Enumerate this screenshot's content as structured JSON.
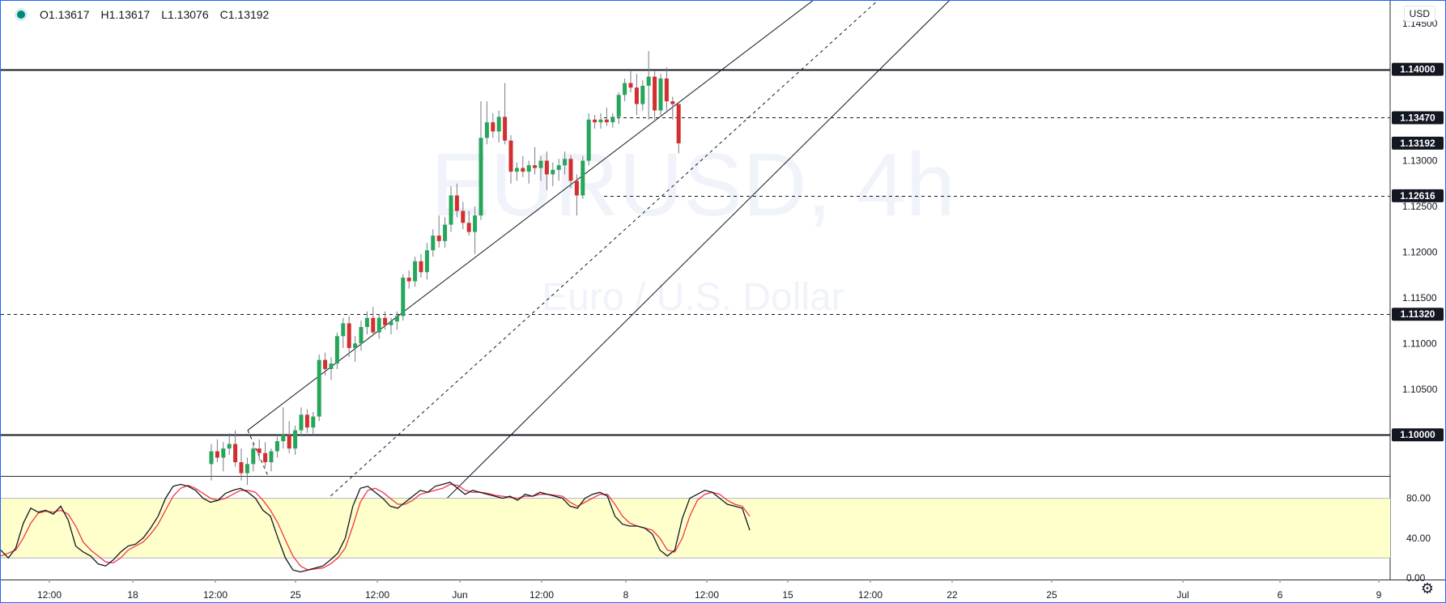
{
  "header": {
    "ohlc": {
      "open": "O1.13617",
      "high": "H1.13617",
      "low": "L1.13076",
      "close": "C1.13192"
    },
    "currency": "USD"
  },
  "watermark": {
    "symbol": "EURUSD, 4h",
    "description": "Euro / U.S. Dollar"
  },
  "icons": {
    "settings": "gear-icon",
    "status": "status-dot-icon"
  },
  "colors": {
    "up": "#26a65b",
    "down": "#d32f2f",
    "stoch_k": "#131722",
    "stoch_d": "#f23645",
    "stoch_band": "#ffffcc"
  },
  "chart_data": {
    "type": "candlestick",
    "price_axis": {
      "ticks": [
        "1.14500",
        "1.14000",
        "1.13500",
        "1.13000",
        "1.12500",
        "1.12000",
        "1.11500",
        "1.11000",
        "1.10500",
        "1.10000"
      ],
      "ylim": [
        1.0955,
        1.1475
      ]
    },
    "time_axis": {
      "ticks": [
        "12:00",
        "18",
        "12:00",
        "25",
        "12:00",
        "Jun",
        "12:00",
        "8",
        "12:00",
        "15",
        "12:00",
        "22",
        "25",
        "Jul",
        "6",
        "9"
      ]
    },
    "price_labels": [
      {
        "value": 1.14,
        "text": "1.14000",
        "style": "solid"
      },
      {
        "value": 1.1347,
        "text": "1.13470",
        "style": "dashed"
      },
      {
        "value": 1.13192,
        "text": "1.13192",
        "style": "current"
      },
      {
        "value": 1.12616,
        "text": "1.12616",
        "style": "dashed"
      },
      {
        "value": 1.1132,
        "text": "1.11320",
        "style": "dashed"
      },
      {
        "value": 1.1,
        "text": "1.10000",
        "style": "solid"
      }
    ],
    "channel": {
      "upper": [
        [
          0.0,
          1.1005
        ],
        [
          1.0,
          1.148
        ]
      ],
      "middle": [
        [
          0.0,
          1.0895
        ],
        [
          1.0,
          1.1525
        ]
      ],
      "lower": [
        [
          0.0,
          1.089
        ],
        [
          1.0,
          1.1575
        ]
      ]
    },
    "candles": [
      [
        1.0968,
        1.099,
        1.095,
        1.0982
      ],
      [
        1.0982,
        1.0995,
        1.097,
        1.0975
      ],
      [
        1.0975,
        1.0992,
        1.096,
        1.0985
      ],
      [
        1.0985,
        1.1002,
        1.0978,
        1.099
      ],
      [
        1.099,
        1.1005,
        1.0965,
        1.097
      ],
      [
        1.097,
        1.0985,
        1.095,
        1.0958
      ],
      [
        1.0958,
        1.0975,
        1.0945,
        1.0968
      ],
      [
        1.0968,
        1.099,
        1.096,
        1.0985
      ],
      [
        1.0985,
        1.0995,
        1.0972,
        1.098
      ],
      [
        1.098,
        1.0992,
        1.0965,
        1.097
      ],
      [
        1.097,
        1.0985,
        1.096,
        1.0982
      ],
      [
        1.0982,
        1.0998,
        1.0975,
        1.0993
      ],
      [
        1.0993,
        1.103,
        1.0985,
        1.1
      ],
      [
        1.1,
        1.1015,
        1.098,
        1.0985
      ],
      [
        1.0985,
        1.101,
        1.0978,
        1.1005
      ],
      [
        1.1005,
        1.103,
        1.0998,
        1.1022
      ],
      [
        1.1022,
        1.1028,
        1.1002,
        1.1008
      ],
      [
        1.1008,
        1.1025,
        1.1,
        1.102
      ],
      [
        1.102,
        1.1088,
        1.1015,
        1.1082
      ],
      [
        1.1082,
        1.109,
        1.1065,
        1.1072
      ],
      [
        1.1072,
        1.1085,
        1.106,
        1.1078
      ],
      [
        1.1078,
        1.1112,
        1.1072,
        1.1108
      ],
      [
        1.1108,
        1.1128,
        1.1095,
        1.1122
      ],
      [
        1.1122,
        1.113,
        1.1085,
        1.1095
      ],
      [
        1.1095,
        1.1108,
        1.108,
        1.11
      ],
      [
        1.11,
        1.1125,
        1.1092,
        1.1118
      ],
      [
        1.1118,
        1.1135,
        1.111,
        1.1128
      ],
      [
        1.1128,
        1.114,
        1.1108,
        1.1112
      ],
      [
        1.1112,
        1.1132,
        1.1105,
        1.1128
      ],
      [
        1.1128,
        1.1135,
        1.1115,
        1.112
      ],
      [
        1.112,
        1.1128,
        1.111,
        1.1124
      ],
      [
        1.1124,
        1.1135,
        1.1115,
        1.113
      ],
      [
        1.113,
        1.1176,
        1.1125,
        1.1172
      ],
      [
        1.1172,
        1.118,
        1.116,
        1.1168
      ],
      [
        1.1168,
        1.1195,
        1.1162,
        1.119
      ],
      [
        1.119,
        1.1198,
        1.1172,
        1.1178
      ],
      [
        1.1178,
        1.121,
        1.117,
        1.1202
      ],
      [
        1.1202,
        1.1225,
        1.1195,
        1.1218
      ],
      [
        1.1218,
        1.124,
        1.1205,
        1.1212
      ],
      [
        1.1212,
        1.1238,
        1.1205,
        1.123
      ],
      [
        1.123,
        1.1272,
        1.1222,
        1.1262
      ],
      [
        1.1262,
        1.1275,
        1.1238,
        1.1245
      ],
      [
        1.1245,
        1.1255,
        1.1225,
        1.1232
      ],
      [
        1.1232,
        1.1245,
        1.1218,
        1.1222
      ],
      [
        1.1222,
        1.125,
        1.1198,
        1.124
      ],
      [
        1.124,
        1.1365,
        1.1235,
        1.1325
      ],
      [
        1.1325,
        1.1365,
        1.1318,
        1.1342
      ],
      [
        1.1342,
        1.1352,
        1.1325,
        1.1332
      ],
      [
        1.1332,
        1.1355,
        1.132,
        1.1348
      ],
      [
        1.1348,
        1.1385,
        1.1318,
        1.1322
      ],
      [
        1.1322,
        1.1328,
        1.1275,
        1.1288
      ],
      [
        1.1288,
        1.1298,
        1.1278,
        1.1292
      ],
      [
        1.1292,
        1.1305,
        1.1282,
        1.1288
      ],
      [
        1.1288,
        1.13,
        1.1275,
        1.1295
      ],
      [
        1.1295,
        1.1315,
        1.1285,
        1.1292
      ],
      [
        1.1292,
        1.1305,
        1.1278,
        1.13
      ],
      [
        1.13,
        1.131,
        1.1268,
        1.1285
      ],
      [
        1.1285,
        1.1298,
        1.1272,
        1.129
      ],
      [
        1.129,
        1.1302,
        1.1278,
        1.1295
      ],
      [
        1.1295,
        1.131,
        1.1285,
        1.1302
      ],
      [
        1.1302,
        1.1306,
        1.127,
        1.1278
      ],
      [
        1.1278,
        1.1285,
        1.124,
        1.1262
      ],
      [
        1.1262,
        1.1305,
        1.1258,
        1.13
      ],
      [
        1.13,
        1.1352,
        1.1295,
        1.1345
      ],
      [
        1.1345,
        1.135,
        1.1335,
        1.1342
      ],
      [
        1.1342,
        1.1352,
        1.1335,
        1.1345
      ],
      [
        1.1345,
        1.1358,
        1.1338,
        1.1342
      ],
      [
        1.1342,
        1.1352,
        1.1336,
        1.1348
      ],
      [
        1.1348,
        1.1375,
        1.134,
        1.1372
      ],
      [
        1.1372,
        1.139,
        1.1365,
        1.1385
      ],
      [
        1.1385,
        1.1398,
        1.1375,
        1.138
      ],
      [
        1.138,
        1.1395,
        1.135,
        1.1362
      ],
      [
        1.1362,
        1.1388,
        1.1355,
        1.1382
      ],
      [
        1.1382,
        1.142,
        1.1345,
        1.1392
      ],
      [
        1.1392,
        1.1398,
        1.1345,
        1.1355
      ],
      [
        1.1355,
        1.1395,
        1.135,
        1.139
      ],
      [
        1.139,
        1.1402,
        1.1355,
        1.1365
      ],
      [
        1.1365,
        1.137,
        1.1345,
        1.1362
      ],
      [
        1.1362,
        1.1362,
        1.1308,
        1.1319
      ]
    ],
    "stochastic": {
      "ylim": [
        0,
        100
      ],
      "ticks": [
        "80.00",
        "40.00",
        "0.00"
      ],
      "band": [
        20,
        80
      ],
      "k": [
        28,
        20,
        30,
        55,
        70,
        66,
        68,
        64,
        72,
        58,
        32,
        26,
        22,
        14,
        12,
        18,
        26,
        32,
        34,
        40,
        50,
        62,
        80,
        92,
        94,
        92,
        88,
        80,
        76,
        78,
        85,
        88,
        90,
        86,
        80,
        68,
        62,
        40,
        20,
        8,
        6,
        8,
        10,
        12,
        18,
        25,
        40,
        72,
        90,
        92,
        86,
        80,
        72,
        70,
        76,
        82,
        88,
        86,
        92,
        94,
        96,
        90,
        84,
        88,
        86,
        84,
        82,
        80,
        82,
        78,
        84,
        82,
        86,
        84,
        82,
        80,
        72,
        70,
        80,
        84,
        86,
        82,
        62,
        54,
        52,
        52,
        50,
        44,
        28,
        22,
        28,
        60,
        80,
        84,
        88,
        86,
        80,
        74,
        72,
        70,
        48
      ],
      "d": [
        22,
        25,
        28,
        40,
        55,
        65,
        67,
        66,
        68,
        64,
        52,
        36,
        28,
        22,
        16,
        15,
        20,
        28,
        32,
        36,
        44,
        54,
        68,
        82,
        90,
        93,
        90,
        85,
        80,
        78,
        80,
        84,
        88,
        88,
        86,
        78,
        68,
        55,
        38,
        22,
        12,
        8,
        9,
        10,
        14,
        20,
        30,
        52,
        76,
        88,
        90,
        86,
        80,
        74,
        74,
        78,
        84,
        86,
        88,
        90,
        94,
        93,
        88,
        86,
        86,
        85,
        83,
        82,
        81,
        80,
        82,
        82,
        84,
        84,
        83,
        82,
        76,
        72,
        76,
        80,
        84,
        84,
        74,
        62,
        55,
        52,
        50,
        48,
        40,
        28,
        26,
        40,
        62,
        78,
        84,
        86,
        84,
        78,
        74,
        72,
        62
      ]
    }
  }
}
